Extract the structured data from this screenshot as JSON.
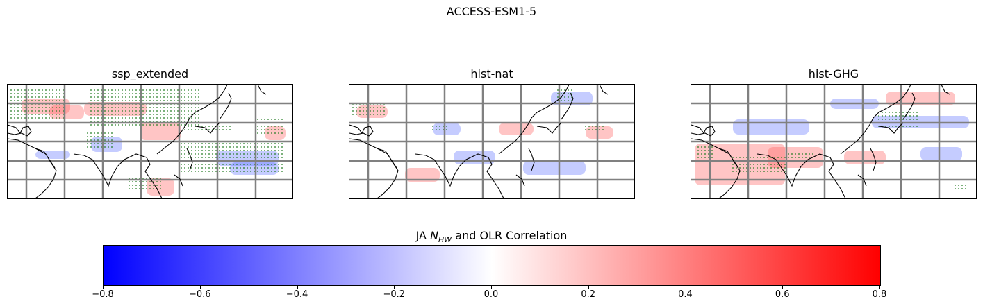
{
  "figure": {
    "title": "ACCESS-ESM1-5",
    "colors": {
      "negative": "#0000ff",
      "neutral": "#ffffff",
      "positive": "#ff0000",
      "stipple": "#1f7a1f",
      "gridlines": "#808080",
      "coastline": "#000000"
    }
  },
  "panels": [
    {
      "title": "ssp_extended"
    },
    {
      "title": "hist-nat"
    },
    {
      "title": "hist-GHG"
    }
  ],
  "colorbar": {
    "label_prefix": "JA ",
    "label_var": "N",
    "label_sub": "HW",
    "label_suffix": " and OLR Correlation",
    "min": -0.8,
    "max": 0.8,
    "ticks": [
      "−0.8",
      "−0.6",
      "−0.4",
      "−0.2",
      "0.0",
      "0.2",
      "0.4",
      "0.6",
      "0.8"
    ]
  }
}
